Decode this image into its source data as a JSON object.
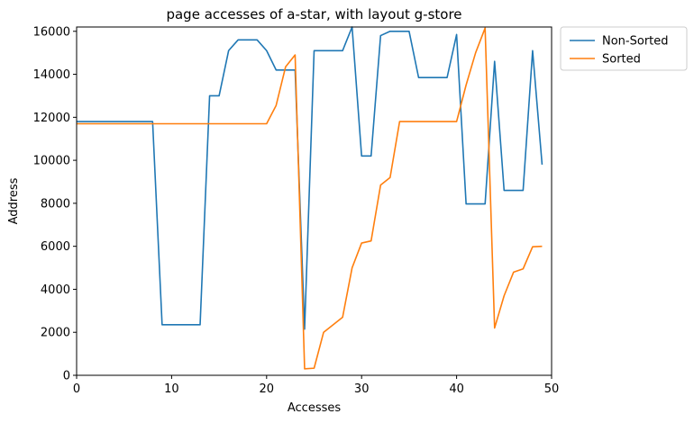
{
  "chart_data": {
    "type": "line",
    "title": "page accesses of a-star, with layout g-store",
    "xlabel": "Accesses",
    "ylabel": "Address",
    "xlim": [
      0,
      50
    ],
    "ylim": [
      0,
      16200
    ],
    "xticks": [
      0,
      10,
      20,
      30,
      40,
      50
    ],
    "yticks": [
      0,
      2000,
      4000,
      6000,
      8000,
      10000,
      12000,
      14000,
      16000
    ],
    "grid": false,
    "legend_position": "outside-top-right",
    "series": [
      {
        "name": "Non-Sorted",
        "color": "#1f77b4",
        "x": [
          0,
          1,
          2,
          3,
          4,
          5,
          6,
          7,
          8,
          9,
          10,
          11,
          12,
          13,
          14,
          15,
          16,
          17,
          18,
          19,
          20,
          21,
          22,
          23,
          24,
          25,
          26,
          27,
          28,
          29,
          30,
          31,
          32,
          33,
          34,
          35,
          36,
          37,
          38,
          39,
          40,
          41,
          42,
          43,
          44,
          45,
          46,
          47,
          48,
          49
        ],
        "values": [
          11800,
          11800,
          11800,
          11800,
          11800,
          11800,
          11800,
          11800,
          11800,
          2350,
          2350,
          2350,
          2350,
          2350,
          13000,
          13000,
          15100,
          15600,
          15600,
          15600,
          15100,
          14200,
          14200,
          14200,
          2150,
          15100,
          15100,
          15100,
          15100,
          16200,
          10200,
          10200,
          15800,
          16000,
          16000,
          16000,
          13850,
          13850,
          13850,
          13850,
          15850,
          7970,
          7970,
          7970,
          14600,
          8600,
          8600,
          8600,
          15100,
          9800
        ]
      },
      {
        "name": "Sorted",
        "color": "#ff7f0e",
        "x": [
          0,
          1,
          2,
          3,
          4,
          5,
          6,
          7,
          8,
          9,
          10,
          11,
          12,
          13,
          14,
          15,
          16,
          17,
          18,
          19,
          20,
          21,
          22,
          23,
          24,
          25,
          26,
          27,
          28,
          29,
          30,
          31,
          32,
          33,
          34,
          35,
          36,
          37,
          38,
          39,
          40,
          41,
          42,
          43,
          44,
          45,
          46,
          47,
          48,
          49
        ],
        "values": [
          11700,
          11700,
          11700,
          11700,
          11700,
          11700,
          11700,
          11700,
          11700,
          11700,
          11700,
          11700,
          11700,
          11700,
          11700,
          11700,
          11700,
          11700,
          11700,
          11700,
          11700,
          12550,
          14350,
          14900,
          300,
          330,
          2000,
          2350,
          2700,
          5000,
          6150,
          6250,
          8850,
          9200,
          11800,
          11800,
          11800,
          11800,
          11800,
          11800,
          11800,
          13500,
          15000,
          16150,
          2200,
          3700,
          4800,
          4950,
          5980,
          6000
        ]
      }
    ]
  }
}
